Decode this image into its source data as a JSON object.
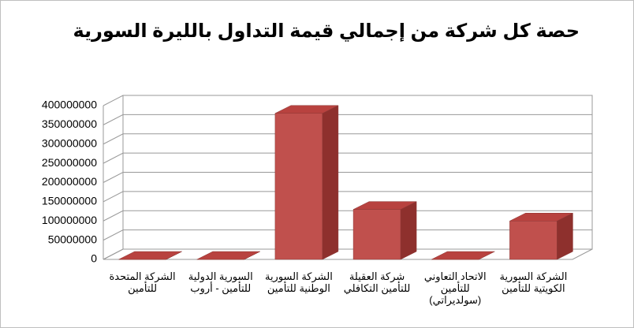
{
  "chart_data": {
    "type": "bar3d",
    "title": "حصة كل شركة من إجمالي قيمة التداول بالليرة السورية",
    "categories": [
      "الشركة المتحدة\nللتأمين",
      "السورية الدولية\nللتأمين - أروب",
      "الشركة السورية\nالوطنية للتأمين",
      "شركة العقيلة\nللتأمين التكافلي",
      "الاتحاد التعاوني\nللتأمين\n(سولديراتي)",
      "الشركة السورية\nالكويتية للتأمين"
    ],
    "values": [
      0,
      0,
      380000000,
      130000000,
      0,
      100000000
    ],
    "color": "#c0504d",
    "ylim": [
      0,
      400000000
    ],
    "yticks": [
      0,
      50000000,
      100000000,
      150000000,
      200000000,
      250000000,
      300000000,
      350000000,
      400000000
    ],
    "grid": true
  }
}
